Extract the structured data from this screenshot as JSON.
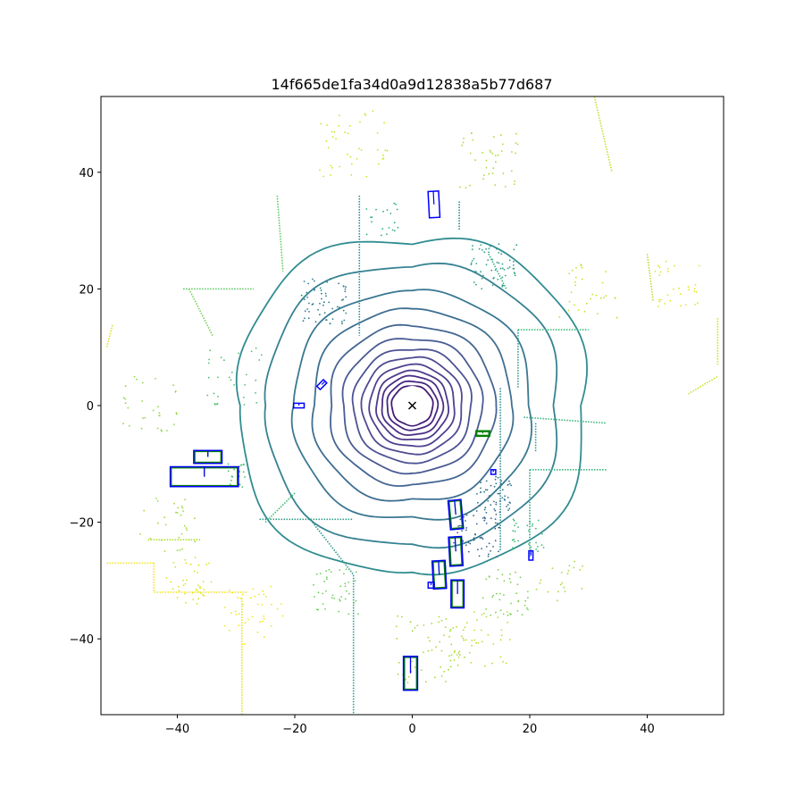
{
  "chart_data": {
    "type": "scatter",
    "title": "14f665de1fa34d0a9d12838a5b77d687",
    "xlabel": "",
    "ylabel": "",
    "xlim": [
      -53,
      53
    ],
    "ylim": [
      -53,
      53
    ],
    "x_ticks": [
      -40,
      -20,
      0,
      20,
      40
    ],
    "y_ticks": [
      -40,
      -20,
      0,
      20,
      40
    ],
    "grid": false,
    "ego": {
      "x": 0,
      "y": 0,
      "marker": "x"
    },
    "colormap": "viridis",
    "colors": {
      "gt_box": "#008000",
      "pred_box": "#0000ff",
      "ego_marker": "#000000"
    },
    "point_cloud": {
      "rings": [
        {
          "r": 3.5,
          "color": "#3b0f70"
        },
        {
          "r": 4.3,
          "color": "#3e1a7a"
        },
        {
          "r": 5.2,
          "color": "#42237f"
        },
        {
          "r": 6.1,
          "color": "#432d85"
        },
        {
          "r": 7.2,
          "color": "#45378a"
        },
        {
          "r": 8.5,
          "color": "#46408c"
        },
        {
          "r": 10.0,
          "color": "#43498d"
        },
        {
          "r": 11.8,
          "color": "#3f528d"
        },
        {
          "r": 14.0,
          "color": "#3a5d8c"
        },
        {
          "r": 16.8,
          "color": "#34678c"
        },
        {
          "r": 20.0,
          "color": "#2f718c"
        },
        {
          "r": 24.5,
          "color": "#2b7b8c"
        },
        {
          "r": 29.0,
          "color": "#26868a"
        }
      ],
      "segments": [
        {
          "pts": [
            [
              -44,
              -27
            ],
            [
              -44,
              -32
            ],
            [
              -36,
              -32
            ],
            [
              -28,
              -32
            ]
          ],
          "color": "#f2e51d"
        },
        {
          "pts": [
            [
              -52,
              -27
            ],
            [
              -44,
              -27
            ]
          ],
          "color": "#f2e51d"
        },
        {
          "pts": [
            [
              -29,
              -33
            ],
            [
              -29,
              -53
            ]
          ],
          "color": "#e8e419"
        },
        {
          "pts": [
            [
              -26,
              -19.5
            ],
            [
              -10,
              -19.5
            ]
          ],
          "color": "#2f9c86"
        },
        {
          "pts": [
            [
              -17,
              -20
            ],
            [
              -10,
              -29
            ],
            [
              -10,
              -53
            ]
          ],
          "color": "#2a9a8b"
        },
        {
          "pts": [
            [
              20,
              -11
            ],
            [
              33,
              -11
            ]
          ],
          "color": "#2fb47c"
        },
        {
          "pts": [
            [
              20,
              -11
            ],
            [
              20,
              -26
            ]
          ],
          "color": "#25a584"
        },
        {
          "pts": [
            [
              18,
              13
            ],
            [
              30,
              13
            ]
          ],
          "color": "#3bbb75"
        },
        {
          "pts": [
            [
              18,
              13
            ],
            [
              18,
              3
            ]
          ],
          "color": "#2b9b8a"
        },
        {
          "pts": [
            [
              15,
              3
            ],
            [
              15,
              -25
            ]
          ],
          "color": "#2b8d8c"
        },
        {
          "pts": [
            [
              19,
              -2
            ],
            [
              33,
              -3
            ]
          ],
          "color": "#35b779"
        },
        {
          "pts": [
            [
              21,
              -3
            ],
            [
              21,
              -8
            ]
          ],
          "color": "#2c998b"
        },
        {
          "pts": [
            [
              -9,
              36
            ],
            [
              -9,
              12
            ]
          ],
          "color": "#2d8d8c"
        },
        {
          "pts": [
            [
              8,
              35
            ],
            [
              8,
              30
            ]
          ],
          "color": "#2a8b8d"
        },
        {
          "pts": [
            [
              -39,
              20
            ],
            [
              -27,
              20
            ]
          ],
          "color": "#5ec962"
        },
        {
          "pts": [
            [
              -38,
              20
            ],
            [
              -34,
              12
            ]
          ],
          "color": "#75d054"
        },
        {
          "pts": [
            [
              -52,
              10
            ],
            [
              -51,
              14
            ]
          ],
          "color": "#d8e219"
        },
        {
          "pts": [
            [
              31,
              53
            ],
            [
              34,
              40
            ]
          ],
          "color": "#c2df23"
        },
        {
          "pts": [
            [
              40,
              26
            ],
            [
              41,
              18
            ]
          ],
          "color": "#b5de2b"
        },
        {
          "pts": [
            [
              47,
              2
            ],
            [
              52,
              5
            ]
          ],
          "color": "#c8e020"
        },
        {
          "pts": [
            [
              52,
              15
            ],
            [
              52,
              7
            ]
          ],
          "color": "#d0e11c"
        },
        {
          "pts": [
            [
              -23,
              36
            ],
            [
              -22,
              23
            ]
          ],
          "color": "#5ec962"
        },
        {
          "pts": [
            [
              13,
              26
            ],
            [
              16,
              20
            ]
          ],
          "color": "#2fb47c"
        },
        {
          "pts": [
            [
              -20,
              -15
            ],
            [
              -25,
              -20
            ]
          ],
          "color": "#3aba76"
        },
        {
          "pts": [
            [
              -45,
              -23
            ],
            [
              -36,
              -23
            ]
          ],
          "color": "#b5de2b"
        }
      ],
      "clusters": [
        {
          "cx": -38,
          "cy": -30,
          "n": 40,
          "spread": 4,
          "color": "#dde318"
        },
        {
          "cx": -27,
          "cy": -36,
          "n": 40,
          "spread": 5,
          "color": "#f1e51d"
        },
        {
          "cx": -13,
          "cy": -32,
          "n": 40,
          "spread": 4,
          "color": "#6ccd5a"
        },
        {
          "cx": 3,
          "cy": -42,
          "n": 60,
          "spread": 6,
          "color": "#a2da37"
        },
        {
          "cx": 12,
          "cy": -40,
          "n": 40,
          "spread": 5,
          "color": "#bade28"
        },
        {
          "cx": 16,
          "cy": -32,
          "n": 40,
          "spread": 4,
          "color": "#7ad151"
        },
        {
          "cx": 11,
          "cy": -22,
          "n": 60,
          "spread": 4,
          "color": "#34618d"
        },
        {
          "cx": 14,
          "cy": -15,
          "n": 50,
          "spread": 3,
          "color": "#2d708e"
        },
        {
          "cx": 20,
          "cy": -22,
          "n": 30,
          "spread": 3,
          "color": "#3dbc74"
        },
        {
          "cx": -10,
          "cy": 45,
          "n": 40,
          "spread": 6,
          "color": "#d2e21b"
        },
        {
          "cx": 13,
          "cy": 42,
          "n": 40,
          "spread": 5,
          "color": "#a5db36"
        },
        {
          "cx": 14,
          "cy": 24,
          "n": 60,
          "spread": 4,
          "color": "#2e9e88"
        },
        {
          "cx": -15,
          "cy": 18,
          "n": 60,
          "spread": 4,
          "color": "#2d7a8e"
        },
        {
          "cx": -5,
          "cy": 32,
          "n": 20,
          "spread": 3,
          "color": "#29af7f"
        },
        {
          "cx": -30,
          "cy": 5,
          "n": 30,
          "spread": 5,
          "color": "#4ac16d"
        },
        {
          "cx": -45,
          "cy": 0,
          "n": 30,
          "spread": 5,
          "color": "#90d743"
        },
        {
          "cx": -42,
          "cy": -20,
          "n": 30,
          "spread": 5,
          "color": "#9fda3a"
        },
        {
          "cx": 25,
          "cy": -30,
          "n": 20,
          "spread": 4,
          "color": "#a8db34"
        },
        {
          "cx": 30,
          "cy": 20,
          "n": 30,
          "spread": 5,
          "color": "#c5e021"
        },
        {
          "cx": 45,
          "cy": 21,
          "n": 30,
          "spread": 4,
          "color": "#e5e419"
        },
        {
          "cx": -30,
          "cy": -12,
          "n": 20,
          "spread": 2,
          "color": "#44bf70"
        }
      ]
    },
    "boxes": [
      {
        "cx": 3.7,
        "cy": 34.5,
        "w": 1.8,
        "h": 4.5,
        "angle": -3,
        "kind": "pred"
      },
      {
        "cx": -15.4,
        "cy": 3.6,
        "w": 0.8,
        "h": 1.6,
        "angle": 45,
        "kind": "pred"
      },
      {
        "cx": -19.3,
        "cy": 0.0,
        "w": 1.8,
        "h": 0.8,
        "angle": 0,
        "kind": "pred"
      },
      {
        "cx": 12.0,
        "cy": -4.8,
        "w": 2.2,
        "h": 0.8,
        "angle": 0,
        "kind": "gt"
      },
      {
        "cx": -34.8,
        "cy": -8.8,
        "w": 4.6,
        "h": 2.0,
        "angle": 0,
        "kind": "gt"
      },
      {
        "cx": -34.8,
        "cy": -8.8,
        "w": 4.8,
        "h": 2.2,
        "angle": 0,
        "kind": "pred"
      },
      {
        "cx": -35.4,
        "cy": -12.2,
        "w": 11.4,
        "h": 3.2,
        "angle": 0,
        "kind": "gt"
      },
      {
        "cx": -35.4,
        "cy": -12.2,
        "w": 11.6,
        "h": 3.4,
        "angle": 0,
        "kind": "pred"
      },
      {
        "cx": 13.8,
        "cy": -11.4,
        "w": 0.8,
        "h": 0.8,
        "angle": 0,
        "kind": "pred"
      },
      {
        "cx": 7.4,
        "cy": -18.7,
        "w": 2.0,
        "h": 4.8,
        "angle": -5,
        "kind": "gt"
      },
      {
        "cx": 7.4,
        "cy": -18.7,
        "w": 2.2,
        "h": 5.0,
        "angle": -5,
        "kind": "pred"
      },
      {
        "cx": 7.4,
        "cy": -25.0,
        "w": 2.0,
        "h": 4.8,
        "angle": -3,
        "kind": "gt"
      },
      {
        "cx": 7.4,
        "cy": -25.0,
        "w": 2.2,
        "h": 5.0,
        "angle": -3,
        "kind": "pred"
      },
      {
        "cx": 4.6,
        "cy": -29.0,
        "w": 2.0,
        "h": 4.6,
        "angle": -3,
        "kind": "gt"
      },
      {
        "cx": 4.6,
        "cy": -29.0,
        "w": 2.2,
        "h": 4.8,
        "angle": -3,
        "kind": "pred"
      },
      {
        "cx": 3.2,
        "cy": -30.8,
        "w": 1.0,
        "h": 1.0,
        "angle": 0,
        "kind": "pred"
      },
      {
        "cx": 7.7,
        "cy": -32.3,
        "w": 2.0,
        "h": 4.6,
        "angle": 0,
        "kind": "gt"
      },
      {
        "cx": 7.7,
        "cy": -32.3,
        "w": 2.2,
        "h": 4.8,
        "angle": 0,
        "kind": "pred"
      },
      {
        "cx": 20.2,
        "cy": -25.7,
        "w": 0.7,
        "h": 1.6,
        "angle": 0,
        "kind": "pred"
      },
      {
        "cx": -0.3,
        "cy": -45.9,
        "w": 2.2,
        "h": 5.6,
        "angle": 0,
        "kind": "gt"
      },
      {
        "cx": -0.3,
        "cy": -45.9,
        "w": 2.4,
        "h": 5.8,
        "angle": 0,
        "kind": "pred"
      }
    ]
  }
}
